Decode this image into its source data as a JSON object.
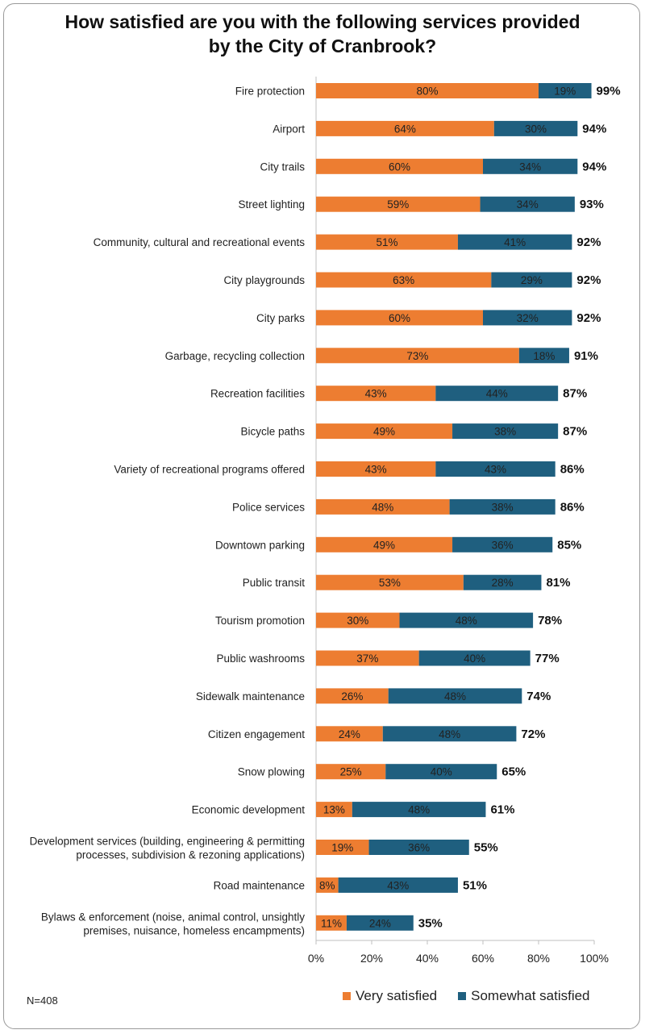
{
  "chart_data": {
    "type": "bar",
    "orientation": "horizontal",
    "stacked": true,
    "title_line1": "How satisfied are you with the following services provided",
    "title_line2": "by the City of Cranbrook?",
    "categories": [
      [
        "Fire protection"
      ],
      [
        "Airport"
      ],
      [
        "City trails"
      ],
      [
        "Street lighting"
      ],
      [
        "Community, cultural and recreational events"
      ],
      [
        "City playgrounds"
      ],
      [
        "City parks"
      ],
      [
        "Garbage, recycling collection"
      ],
      [
        "Recreation facilities"
      ],
      [
        "Bicycle paths"
      ],
      [
        "Variety of recreational programs offered"
      ],
      [
        "Police services"
      ],
      [
        "Downtown parking"
      ],
      [
        "Public transit"
      ],
      [
        "Tourism promotion"
      ],
      [
        "Public washrooms"
      ],
      [
        "Sidewalk maintenance"
      ],
      [
        "Citizen engagement"
      ],
      [
        "Snow plowing"
      ],
      [
        "Economic development"
      ],
      [
        "Development services (building, engineering & permitting",
        "processes, subdivision & rezoning applications)"
      ],
      [
        "Road maintenance"
      ],
      [
        "Bylaws & enforcement (noise, animal control, unsightly",
        "premises, nuisance, homeless encampments)"
      ]
    ],
    "series": [
      {
        "name": "Very satisfied",
        "color": "#ed7d31",
        "values": [
          80,
          64,
          60,
          59,
          51,
          63,
          60,
          73,
          43,
          49,
          43,
          48,
          49,
          53,
          30,
          37,
          26,
          24,
          25,
          13,
          19,
          8,
          11
        ]
      },
      {
        "name": "Somewhat satisfied",
        "color": "#1f5f7f",
        "values": [
          19,
          30,
          34,
          34,
          41,
          29,
          32,
          18,
          44,
          38,
          43,
          38,
          36,
          28,
          48,
          40,
          48,
          48,
          40,
          48,
          36,
          43,
          24
        ]
      }
    ],
    "totals": [
      99,
      94,
      94,
      93,
      92,
      92,
      92,
      91,
      87,
      87,
      86,
      86,
      85,
      81,
      78,
      77,
      74,
      72,
      65,
      61,
      55,
      51,
      35
    ],
    "xlim": [
      0,
      100
    ],
    "xticks": [
      0,
      20,
      40,
      60,
      80,
      100
    ],
    "value_suffix": "%",
    "legend_position": "bottom-right"
  },
  "note": "N=408"
}
